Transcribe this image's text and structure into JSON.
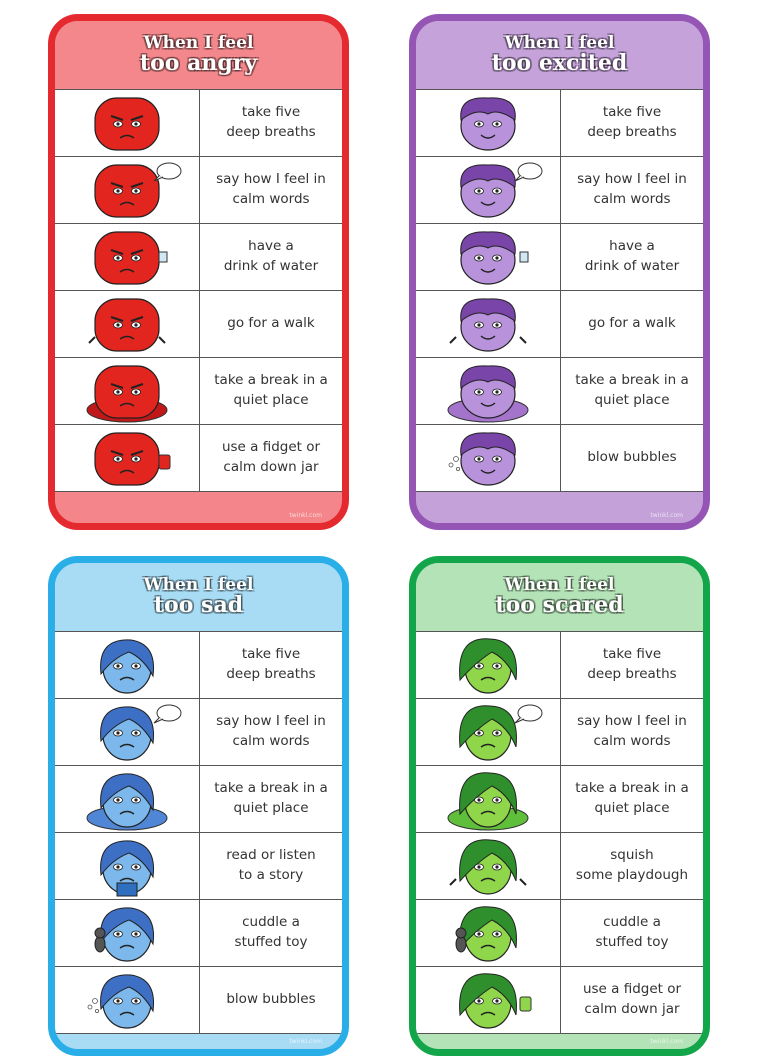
{
  "cards": [
    {
      "id": "angry",
      "header_line1": "When I feel",
      "header_line2": "too angry",
      "footer_mark": "twinkl.com",
      "colors": {
        "border": "#e52a2f",
        "header": "#f3878b",
        "footer": "#f4858a",
        "face": "#e3251f",
        "face_dark": "#b0160f",
        "cushion": "#c01818"
      },
      "rows": [
        {
          "icon": "angry-face-breathing-icon",
          "text": "take five\ndeep breaths",
          "prop": "none"
        },
        {
          "icon": "angry-face-talking-icon",
          "text": "say how I feel in\ncalm words",
          "prop": "speech"
        },
        {
          "icon": "angry-face-water-icon",
          "text": "have a\ndrink of water",
          "prop": "cup"
        },
        {
          "icon": "angry-face-walking-icon",
          "text": "go for a walk",
          "prop": "arms"
        },
        {
          "icon": "angry-face-cushion-icon",
          "text": "take a break in a\nquiet place",
          "prop": "cushion"
        },
        {
          "icon": "angry-face-fidget-jar-icon",
          "text": "use a fidget or\ncalm down jar",
          "prop": "jar"
        }
      ]
    },
    {
      "id": "excited",
      "header_line1": "When I feel",
      "header_line2": "too excited",
      "footer_mark": "twinkl.com",
      "colors": {
        "border": "#9555b5",
        "header": "#c5a2da",
        "footer": "#c4a1d9",
        "face": "#b892db",
        "face_dark": "#7a45a8",
        "cushion": "#a474cc"
      },
      "rows": [
        {
          "icon": "excited-face-breathing-icon",
          "text": "take five\ndeep breaths",
          "prop": "none"
        },
        {
          "icon": "excited-face-talking-icon",
          "text": "say how I feel in\ncalm words",
          "prop": "speech"
        },
        {
          "icon": "excited-face-water-icon",
          "text": "have a\ndrink of water",
          "prop": "cup"
        },
        {
          "icon": "excited-face-walking-icon",
          "text": "go for a walk",
          "prop": "arms"
        },
        {
          "icon": "excited-face-cushion-icon",
          "text": "take a break in a\nquiet place",
          "prop": "cushion"
        },
        {
          "icon": "excited-face-bubbles-icon",
          "text": "blow bubbles",
          "prop": "bubbles"
        }
      ]
    },
    {
      "id": "sad",
      "header_line1": "When I feel",
      "header_line2": "too sad",
      "footer_mark": "twinkl.com",
      "colors": {
        "border": "#2aaee8",
        "header": "#a8dcf5",
        "footer": "#a8dcf5",
        "face": "#7cb8ec",
        "face_dark": "#3d6fc5",
        "cushion": "#4f86d6"
      },
      "rows": [
        {
          "icon": "sad-face-breathing-icon",
          "text": "take five\ndeep breaths",
          "prop": "none"
        },
        {
          "icon": "sad-face-talking-icon",
          "text": "say how I feel in\ncalm words",
          "prop": "speech"
        },
        {
          "icon": "sad-face-cushion-icon",
          "text": "take a break in a\nquiet place",
          "prop": "cushion"
        },
        {
          "icon": "sad-face-reading-icon",
          "text": "read or listen\nto a story",
          "prop": "book"
        },
        {
          "icon": "sad-face-toy-icon",
          "text": "cuddle a\nstuffed toy",
          "prop": "toy"
        },
        {
          "icon": "sad-face-bubbles-icon",
          "text": "blow bubbles",
          "prop": "bubbles"
        }
      ]
    },
    {
      "id": "scared",
      "header_line1": "When I feel",
      "header_line2": "too scared",
      "footer_mark": "twinkl.com",
      "colors": {
        "border": "#13a54a",
        "header": "#b3e3b6",
        "footer": "#b3e3b6",
        "face": "#8fd64a",
        "face_dark": "#2f8f2c",
        "cushion": "#5fbf3a"
      },
      "rows": [
        {
          "icon": "scared-face-breathing-icon",
          "text": "take five\ndeep breaths",
          "prop": "none"
        },
        {
          "icon": "scared-face-talking-icon",
          "text": "say how I feel in\ncalm words",
          "prop": "speech"
        },
        {
          "icon": "scared-face-cushion-icon",
          "text": "take a break in a\nquiet place",
          "prop": "cushion"
        },
        {
          "icon": "scared-face-playdough-icon",
          "text": "squish\nsome playdough",
          "prop": "arms"
        },
        {
          "icon": "scared-face-toy-icon",
          "text": "cuddle a\nstuffed toy",
          "prop": "toy"
        },
        {
          "icon": "scared-face-fidget-jar-icon",
          "text": "use a fidget or\ncalm down jar",
          "prop": "jar"
        }
      ]
    }
  ]
}
